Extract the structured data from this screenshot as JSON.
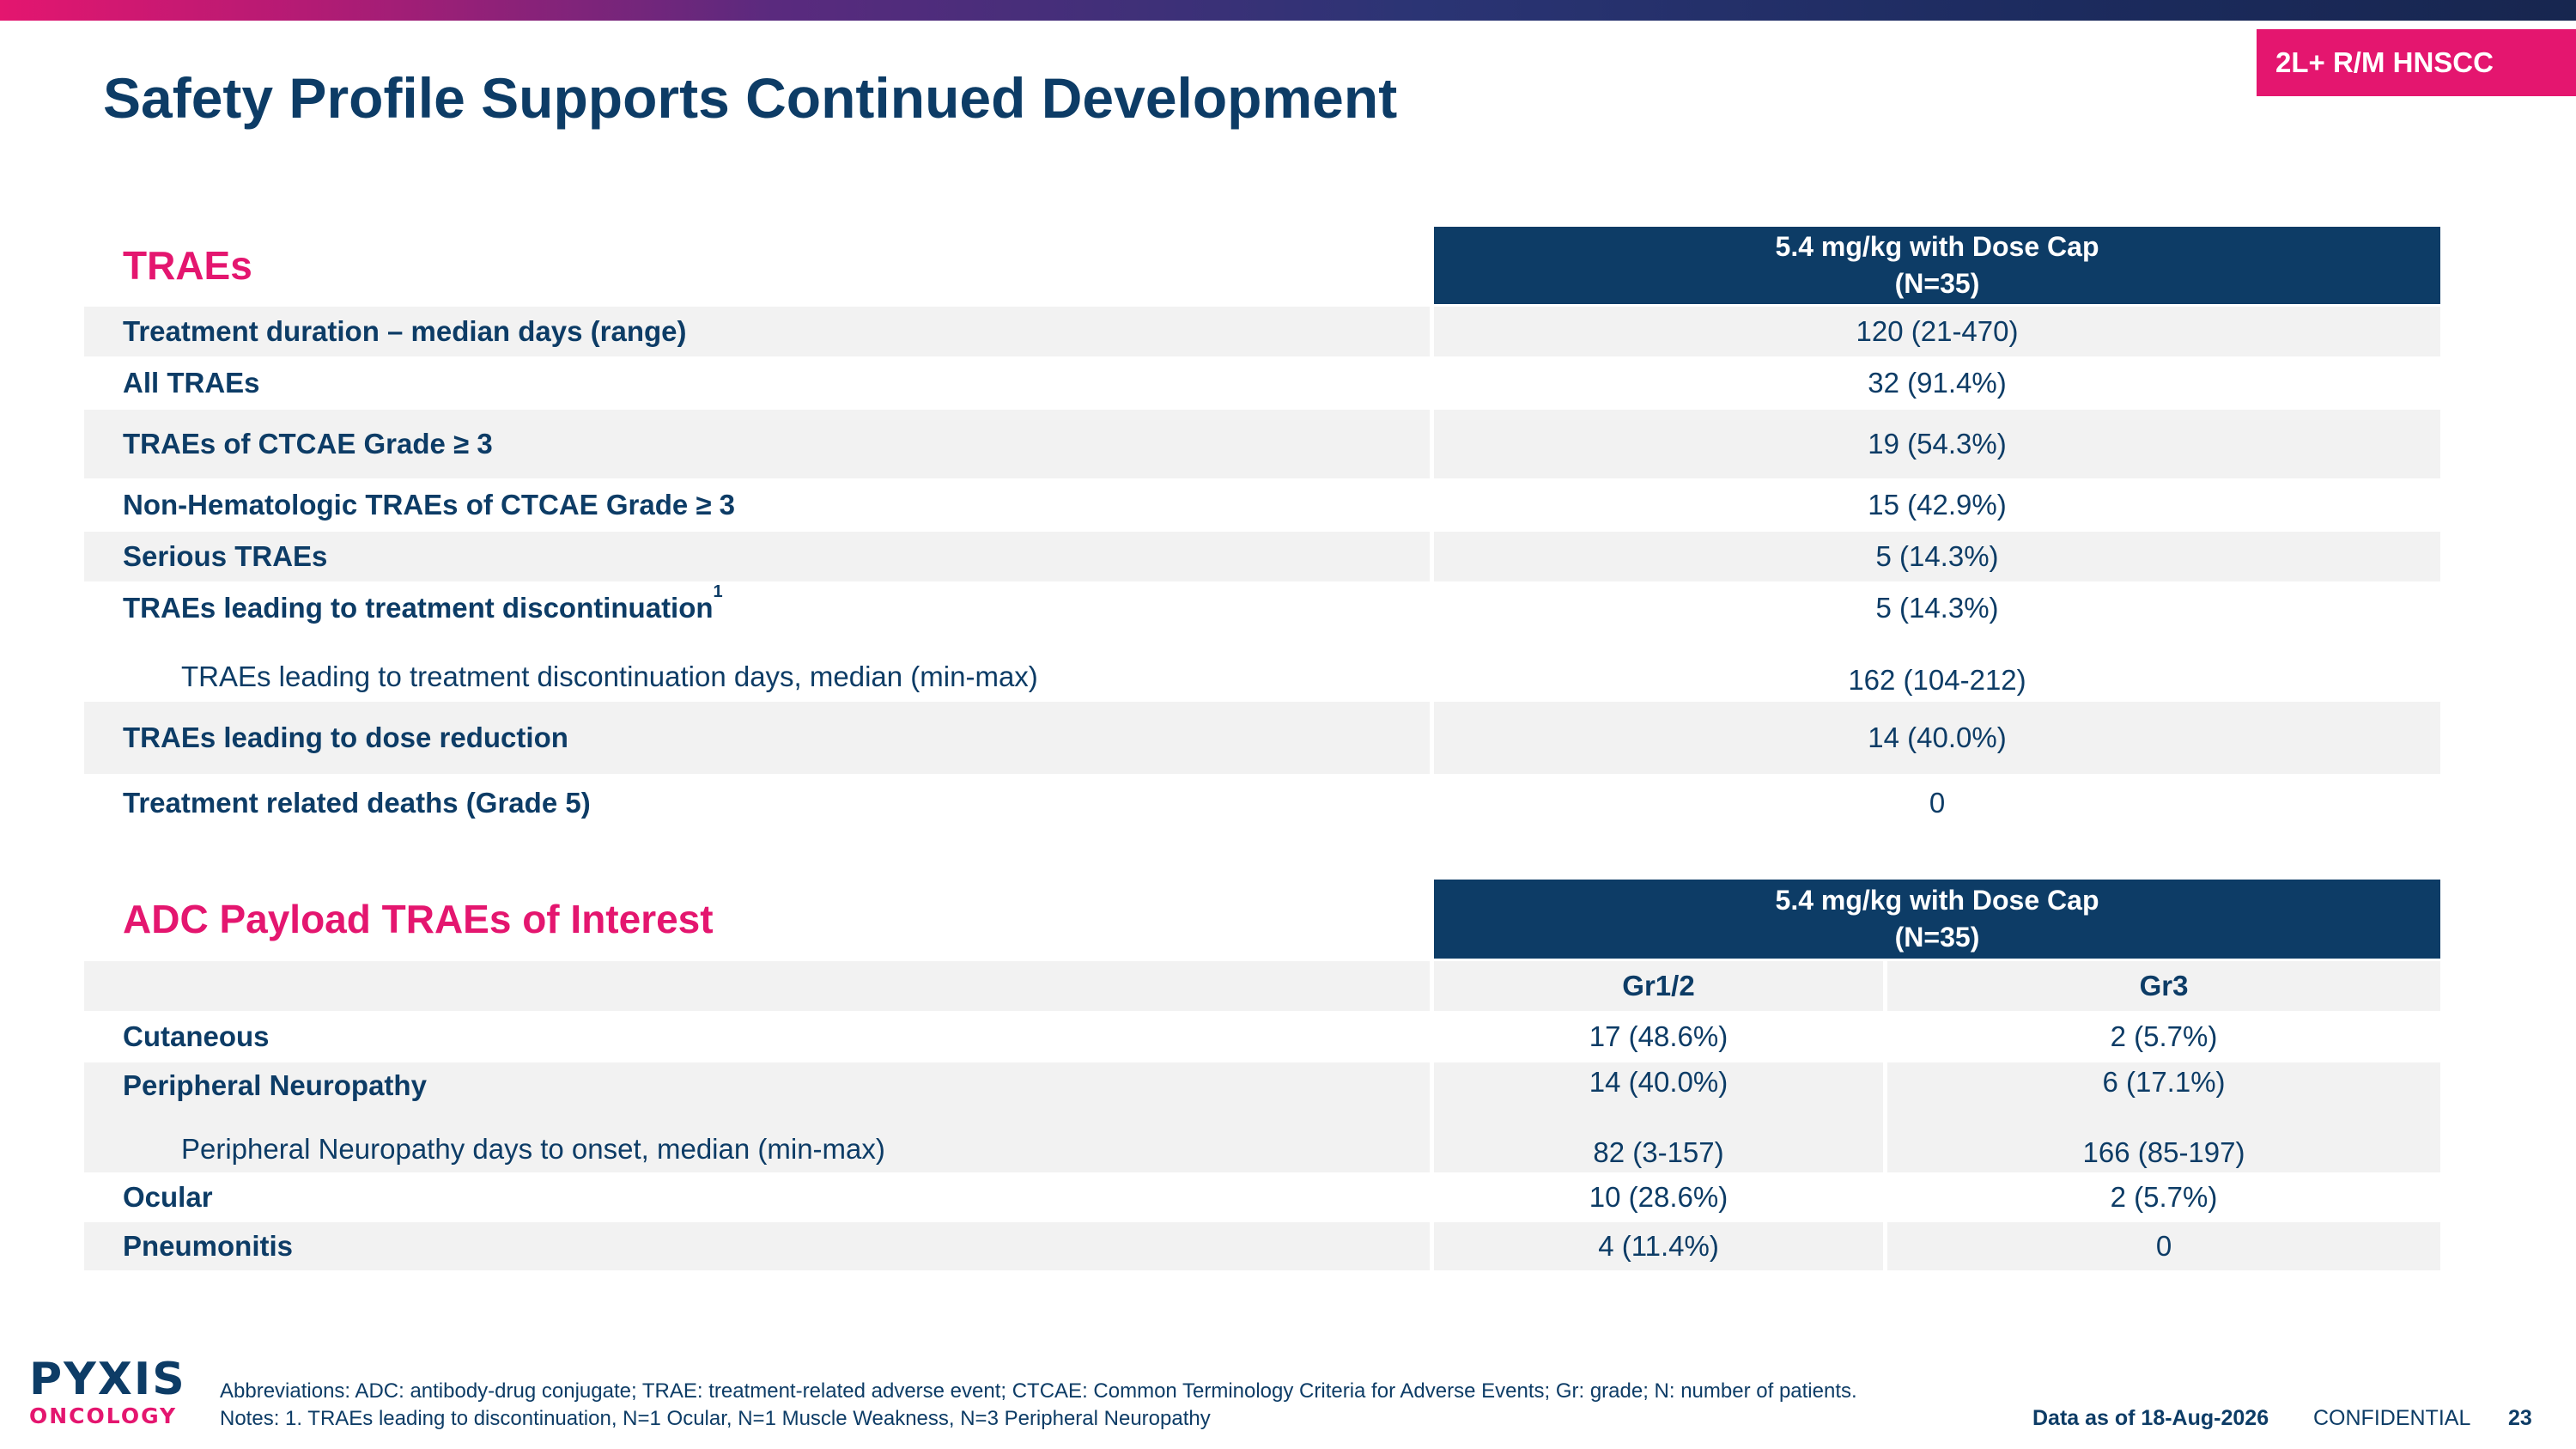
{
  "badge": "2L+ R/M HNSCC",
  "title": "Safety Profile Supports Continued Development",
  "traes": {
    "section_title": "TRAEs",
    "header": {
      "line1": "5.4 mg/kg with Dose Cap",
      "line2": "(N=35)"
    },
    "rows": [
      {
        "label": "Treatment duration – median days (range)",
        "value": "120 (21-470)"
      },
      {
        "label": "All TRAEs",
        "value": "32 (91.4%)"
      },
      {
        "label": "TRAEs of CTCAE Grade ≥ 3",
        "value": "19 (54.3%)"
      },
      {
        "label": "Non-Hematologic TRAEs of CTCAE Grade ≥ 3",
        "value": "15 (42.9%)"
      },
      {
        "label": "Serious TRAEs",
        "value": "5 (14.3%)"
      },
      {
        "label": "TRAEs leading to treatment discontinuation",
        "sup": "1",
        "value": "5 (14.3%)"
      },
      {
        "label": "TRAEs leading to treatment discontinuation days, median (min-max)",
        "value": "162 (104-212)"
      },
      {
        "label": "TRAEs leading to dose reduction",
        "value": "14 (40.0%)"
      },
      {
        "label": "Treatment related deaths (Grade 5)",
        "value": "0"
      }
    ]
  },
  "adc": {
    "section_title": "ADC Payload TRAEs of Interest",
    "header": {
      "line1": "5.4 mg/kg with Dose Cap",
      "line2": "(N=35)"
    },
    "col_gr12": "Gr1/2",
    "col_gr3": "Gr3",
    "rows": [
      {
        "label": "Cutaneous",
        "gr12": "17 (48.6%)",
        "gr3": "2 (5.7%)"
      },
      {
        "label": "Peripheral Neuropathy",
        "gr12": "14 (40.0%)",
        "gr3": "6 (17.1%)"
      },
      {
        "label": "Peripheral Neuropathy days to onset, median (min-max)",
        "gr12": "82 (3-157)",
        "gr3": "166 (85-197)"
      },
      {
        "label": "Ocular",
        "gr12": "10 (28.6%)",
        "gr3": "2 (5.7%)"
      },
      {
        "label": "Pneumonitis",
        "gr12": "4 (11.4%)",
        "gr3": "0"
      }
    ]
  },
  "footer": {
    "logo_top": "PYXIS",
    "logo_bottom": "ONCOLOGY",
    "abbreviations": "Abbreviations: ADC: antibody-drug conjugate; TRAE: treatment-related adverse event; CTCAE: Common Terminology Criteria for Adverse Events; Gr: grade; N: number of patients.",
    "notes": "Notes: 1. TRAEs leading to discontinuation, N=1 Ocular, N=1 Muscle Weakness, N=3 Peripheral Neuropathy",
    "data_as_of": "Data as of 18-Aug-2026",
    "confidential": "CONFIDENTIAL",
    "page_number": "23"
  },
  "colors": {
    "navy": "#0d3c66",
    "magenta": "#e4166f",
    "shade": "#f2f2f2"
  }
}
